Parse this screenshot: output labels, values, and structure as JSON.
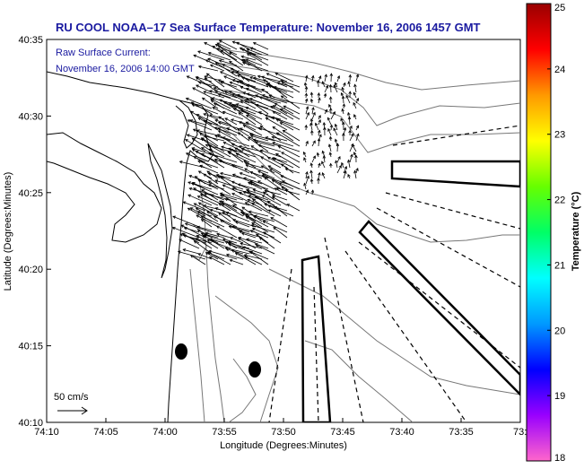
{
  "title": "RU COOL  NOAA–17  Sea Surface Temperature:  November 16, 2006 1457 GMT",
  "annotation": {
    "line1": "Raw Surface Current:",
    "line2": "November 16, 2006 14:00 GMT"
  },
  "scale_label": "50 cm/s",
  "x_axis": {
    "label": "Longitude (Degrees:Minutes)",
    "ticks": [
      "74:10",
      "74:05",
      "74:00",
      "73:55",
      "73:50",
      "73:45",
      "73:40",
      "73:35",
      "73:3"
    ]
  },
  "y_axis": {
    "label": "Latitude (Degrees:Minutes)",
    "ticks": [
      "40:35",
      "40:30",
      "40:25",
      "40:20",
      "40:15",
      "40:10"
    ]
  },
  "colorbar": {
    "label": "Temperature (°C)",
    "ticks": [
      "25",
      "24",
      "23",
      "22",
      "21",
      "20",
      "19",
      "18"
    ],
    "colors": [
      "#ff66cc",
      "#9900ff",
      "#0000ff",
      "#0099ff",
      "#00ffff",
      "#00ff66",
      "#66ff00",
      "#ffff00",
      "#ff9900",
      "#ff0000",
      "#990000"
    ]
  },
  "map_colors": {
    "land_outline": "#000000",
    "contours": "#777777",
    "vectors": "#000000"
  }
}
